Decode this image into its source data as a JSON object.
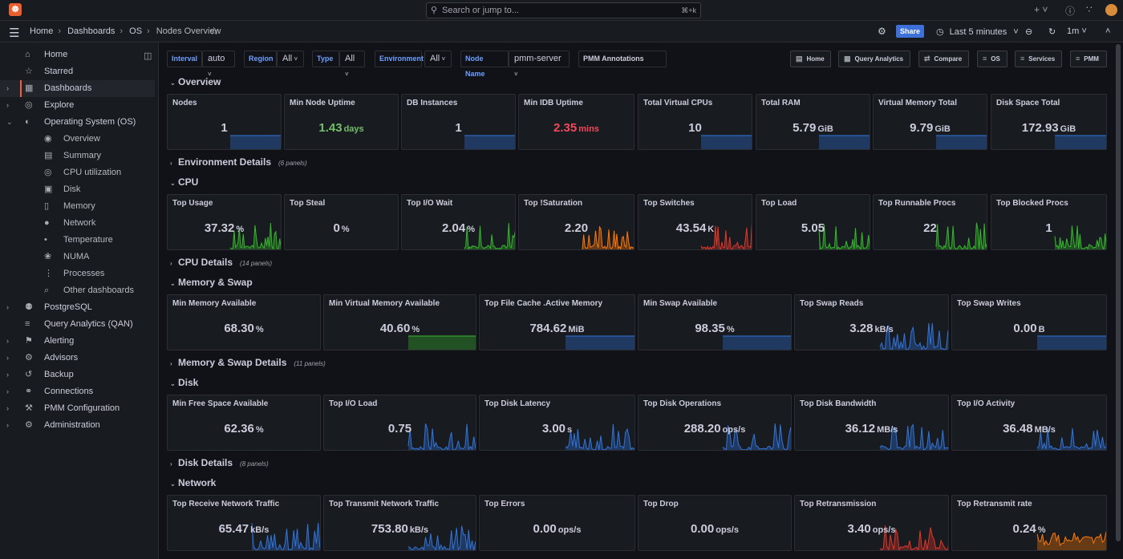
{
  "topbar": {
    "logo_text": "☸",
    "search_placeholder": "Search or jump to...",
    "search_shortcut": "⌘+k",
    "icons": [
      "plus-icon",
      "help-icon",
      "rss-icon"
    ]
  },
  "navbar": {
    "crumbs": [
      "Home",
      "Dashboards",
      "OS",
      "Nodes Overview"
    ],
    "share_label": "Share",
    "time_range": "Last 5 minutes",
    "refresh_interval": "1m"
  },
  "sidebar": {
    "items": [
      {
        "label": "Home",
        "icon": "⌂",
        "chev": "",
        "sub": false,
        "active": false
      },
      {
        "label": "Starred",
        "icon": "☆",
        "chev": "",
        "sub": false,
        "active": false
      },
      {
        "label": "Dashboards",
        "icon": "▦",
        "chev": "›",
        "sub": false,
        "active": true
      },
      {
        "label": "Explore",
        "icon": "◎",
        "chev": "›",
        "sub": false,
        "active": false
      },
      {
        "label": "Operating System (OS)",
        "icon": "◐",
        "chev": "⌄",
        "sub": false,
        "active": false
      },
      {
        "label": "Overview",
        "icon": "◉",
        "chev": "",
        "sub": true,
        "active": false
      },
      {
        "label": "Summary",
        "icon": "▤",
        "chev": "",
        "sub": true,
        "active": false
      },
      {
        "label": "CPU utilization",
        "icon": "◎",
        "chev": "",
        "sub": true,
        "active": false
      },
      {
        "label": "Disk",
        "icon": "▣",
        "chev": "",
        "sub": true,
        "active": false
      },
      {
        "label": "Memory",
        "icon": "▯",
        "chev": "",
        "sub": true,
        "active": false
      },
      {
        "label": "Network",
        "icon": "●",
        "chev": "",
        "sub": true,
        "active": false
      },
      {
        "label": "Temperature",
        "icon": "•",
        "chev": "",
        "sub": true,
        "active": false
      },
      {
        "label": "NUMA",
        "icon": "❀",
        "chev": "",
        "sub": true,
        "active": false
      },
      {
        "label": "Processes",
        "icon": "⋮",
        "chev": "",
        "sub": true,
        "active": false
      },
      {
        "label": "Other dashboards",
        "icon": "⌕",
        "chev": "",
        "sub": true,
        "active": false
      },
      {
        "label": "PostgreSQL",
        "icon": "⚉",
        "chev": "›",
        "sub": false,
        "active": false
      },
      {
        "label": "Query Analytics (QAN)",
        "icon": "≡",
        "chev": "",
        "sub": false,
        "active": false
      },
      {
        "label": "Alerting",
        "icon": "⚑",
        "chev": "›",
        "sub": false,
        "active": false
      },
      {
        "label": "Advisors",
        "icon": "⚙",
        "chev": "›",
        "sub": false,
        "active": false
      },
      {
        "label": "Backup",
        "icon": "↺",
        "chev": "›",
        "sub": false,
        "active": false
      },
      {
        "label": "Connections",
        "icon": "⚭",
        "chev": "›",
        "sub": false,
        "active": false
      },
      {
        "label": "PMM Configuration",
        "icon": "⚒",
        "chev": "›",
        "sub": false,
        "active": false
      },
      {
        "label": "Administration",
        "icon": "⚙",
        "chev": "›",
        "sub": false,
        "active": false
      }
    ]
  },
  "variables": [
    {
      "label": "Interval",
      "value": "auto"
    },
    {
      "label": "Region",
      "value": "All"
    },
    {
      "label": "Type",
      "value": "All"
    },
    {
      "label": "Environment",
      "value": "All"
    },
    {
      "label": "Node Name",
      "value": "pmm-server"
    },
    {
      "label": "PMM Annotations",
      "value": ""
    }
  ],
  "links": [
    "Home",
    "Query Analytics",
    "Compare",
    "OS",
    "Services",
    "PMM"
  ],
  "colors": {
    "blue": "#3274d9",
    "green": "#37b82f",
    "orange": "#ff780a",
    "red": "#e0372b",
    "value_green": "#73bf69",
    "value_red": "#f2495c"
  },
  "sections": [
    {
      "title": "Overview",
      "count": "",
      "expanded": true,
      "panels": [
        {
          "title": "Nodes",
          "value": "1",
          "unit": "",
          "color": "blue",
          "valcolor": ""
        },
        {
          "title": "Min Node Uptime",
          "value": "1.43",
          "unit": "days",
          "color": "none",
          "valcolor": "green"
        },
        {
          "title": "DB Instances",
          "value": "1",
          "unit": "",
          "color": "blue",
          "valcolor": ""
        },
        {
          "title": "Min IDB Uptime",
          "value": "2.35",
          "unit": "mins",
          "color": "none",
          "valcolor": "red"
        },
        {
          "title": "Total Virtual CPUs",
          "value": "10",
          "unit": "",
          "color": "blue",
          "valcolor": ""
        },
        {
          "title": "Total RAM",
          "value": "5.79",
          "unit": "GiB",
          "color": "blue",
          "valcolor": ""
        },
        {
          "title": "Virtual Memory Total",
          "value": "9.79",
          "unit": "GiB",
          "color": "blue",
          "valcolor": ""
        },
        {
          "title": "Disk Space Total",
          "value": "172.93",
          "unit": "GiB",
          "color": "blue",
          "valcolor": ""
        }
      ]
    },
    {
      "title": "Environment Details",
      "count": "(6 panels)",
      "expanded": false,
      "panels": []
    },
    {
      "title": "CPU",
      "count": "",
      "expanded": true,
      "panels": [
        {
          "title": "Top Usage",
          "value": "37.32",
          "unit": "%",
          "color": "green",
          "valcolor": ""
        },
        {
          "title": "Top Steal",
          "value": "0",
          "unit": "%",
          "color": "none",
          "valcolor": ""
        },
        {
          "title": "Top I/O Wait",
          "value": "2.04",
          "unit": "%",
          "color": "green",
          "valcolor": ""
        },
        {
          "title": "Top !Saturation",
          "value": "2.20",
          "unit": "",
          "color": "orange",
          "valcolor": ""
        },
        {
          "title": "Top Switches",
          "value": "43.54",
          "unit": "K",
          "color": "red",
          "valcolor": ""
        },
        {
          "title": "Top Load",
          "value": "5.05",
          "unit": "",
          "color": "green",
          "valcolor": ""
        },
        {
          "title": "Top Runnable Procs",
          "value": "22",
          "unit": "",
          "color": "green",
          "valcolor": ""
        },
        {
          "title": "Top Blocked Procs",
          "value": "1",
          "unit": "",
          "color": "green",
          "valcolor": ""
        }
      ]
    },
    {
      "title": "CPU Details",
      "count": "(14 panels)",
      "expanded": false,
      "panels": []
    },
    {
      "title": "Memory & Swap",
      "count": "",
      "expanded": true,
      "panels": [
        {
          "title": "Min Memory Available",
          "value": "68.30",
          "unit": "%",
          "color": "none",
          "valcolor": ""
        },
        {
          "title": "Min Virtual Memory Available",
          "value": "40.60",
          "unit": "%",
          "color": "green",
          "valcolor": ""
        },
        {
          "title": "Top File Cache .Active Memory",
          "value": "784.62",
          "unit": "MiB",
          "color": "blue",
          "valcolor": ""
        },
        {
          "title": "Min Swap Available",
          "value": "98.35",
          "unit": "%",
          "color": "blue",
          "valcolor": ""
        },
        {
          "title": "Top Swap Reads",
          "value": "3.28",
          "unit": "kB/s",
          "color": "blue",
          "valcolor": ""
        },
        {
          "title": "Top Swap Writes",
          "value": "0.00",
          "unit": "B",
          "color": "blue",
          "valcolor": ""
        }
      ]
    },
    {
      "title": "Memory & Swap Details",
      "count": "(11 panels)",
      "expanded": false,
      "panels": []
    },
    {
      "title": "Disk",
      "count": "",
      "expanded": true,
      "panels": [
        {
          "title": "Min Free Space Available",
          "value": "62.36",
          "unit": "%",
          "color": "none",
          "valcolor": ""
        },
        {
          "title": "Top I/O Load",
          "value": "0.75",
          "unit": "",
          "color": "blue",
          "valcolor": ""
        },
        {
          "title": "Top Disk Latency",
          "value": "3.00",
          "unit": "s",
          "color": "blue",
          "valcolor": ""
        },
        {
          "title": "Top Disk Operations",
          "value": "288.20",
          "unit": "ops/s",
          "color": "blue",
          "valcolor": ""
        },
        {
          "title": "Top Disk Bandwidth",
          "value": "36.12",
          "unit": "MB/s",
          "color": "blue",
          "valcolor": ""
        },
        {
          "title": "Top I/O Activity",
          "value": "36.48",
          "unit": "MB/s",
          "color": "blue",
          "valcolor": ""
        }
      ]
    },
    {
      "title": "Disk Details",
      "count": "(8 panels)",
      "expanded": false,
      "panels": []
    },
    {
      "title": "Network",
      "count": "",
      "expanded": true,
      "panels": [
        {
          "title": "Top Receive Network Traffic",
          "value": "65.47",
          "unit": "kB/s",
          "color": "blue",
          "valcolor": ""
        },
        {
          "title": "Top Transmit Network Traffic",
          "value": "753.80",
          "unit": "kB/s",
          "color": "blue",
          "valcolor": ""
        },
        {
          "title": "Top Errors",
          "value": "0.00",
          "unit": "ops/s",
          "color": "none",
          "valcolor": ""
        },
        {
          "title": "Top Drop",
          "value": "0.00",
          "unit": "ops/s",
          "color": "none",
          "valcolor": ""
        },
        {
          "title": "Top Retransmission",
          "value": "3.40",
          "unit": "ops/s",
          "color": "red",
          "valcolor": ""
        },
        {
          "title": "Top Retransmit rate",
          "value": "0.24",
          "unit": "%",
          "color": "orange",
          "valcolor": ""
        }
      ]
    }
  ]
}
